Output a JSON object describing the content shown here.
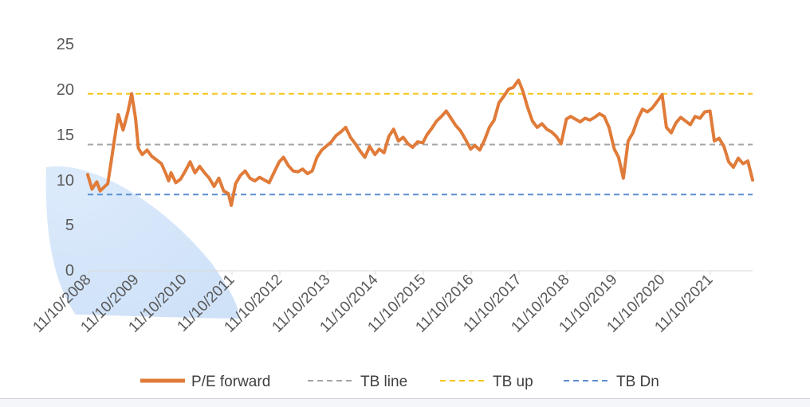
{
  "chart_data": {
    "type": "line",
    "title": "",
    "xlabel": "",
    "ylabel": "",
    "ylim": [
      0,
      25
    ],
    "y_ticks": [
      "0",
      "5",
      "10",
      "15",
      "20",
      "25"
    ],
    "x_ticks": [
      "11/10/2008",
      "11/10/2009",
      "11/10/2010",
      "11/10/2011",
      "11/10/2012",
      "11/10/2013",
      "11/10/2014",
      "11/10/2015",
      "11/10/2016",
      "11/10/2017",
      "11/10/2018",
      "11/10/2019",
      "11/10/2020",
      "11/10/2021"
    ],
    "xlim": [
      2008.86,
      2022.75
    ],
    "grid": false,
    "legend_position": "bottom",
    "series": [
      {
        "name": "P/E forward",
        "style": "solid",
        "color": "#E07B39",
        "x": [
          2008.86,
          2008.95,
          2009.05,
          2009.12,
          2009.2,
          2009.28,
          2009.35,
          2009.42,
          2009.5,
          2009.6,
          2009.7,
          2009.78,
          2009.86,
          2009.92,
          2010.0,
          2010.1,
          2010.2,
          2010.3,
          2010.4,
          2010.5,
          2010.55,
          2010.6,
          2010.7,
          2010.8,
          2010.9,
          2011.0,
          2011.1,
          2011.2,
          2011.3,
          2011.4,
          2011.5,
          2011.6,
          2011.7,
          2011.8,
          2011.86,
          2011.95,
          2012.05,
          2012.15,
          2012.25,
          2012.35,
          2012.45,
          2012.55,
          2012.65,
          2012.75,
          2012.86,
          2012.95,
          2013.05,
          2013.15,
          2013.25,
          2013.35,
          2013.45,
          2013.55,
          2013.65,
          2013.75,
          2013.86,
          2013.95,
          2014.05,
          2014.15,
          2014.25,
          2014.35,
          2014.45,
          2014.55,
          2014.65,
          2014.75,
          2014.86,
          2014.95,
          2015.05,
          2015.15,
          2015.25,
          2015.35,
          2015.45,
          2015.55,
          2015.65,
          2015.75,
          2015.86,
          2015.95,
          2016.05,
          2016.15,
          2016.25,
          2016.35,
          2016.45,
          2016.55,
          2016.65,
          2016.75,
          2016.86,
          2016.95,
          2017.05,
          2017.15,
          2017.25,
          2017.35,
          2017.45,
          2017.55,
          2017.65,
          2017.75,
          2017.86,
          2017.95,
          2018.05,
          2018.15,
          2018.25,
          2018.35,
          2018.45,
          2018.55,
          2018.65,
          2018.75,
          2018.86,
          2018.95,
          2019.05,
          2019.15,
          2019.25,
          2019.35,
          2019.45,
          2019.55,
          2019.65,
          2019.75,
          2019.86,
          2019.95,
          2020.05,
          2020.15,
          2020.25,
          2020.35,
          2020.45,
          2020.55,
          2020.65,
          2020.75,
          2020.86,
          2020.95,
          2021.05,
          2021.15,
          2021.25,
          2021.35,
          2021.45,
          2021.55,
          2021.65,
          2021.75,
          2021.86,
          2021.95,
          2022.05,
          2022.15,
          2022.25,
          2022.35,
          2022.45,
          2022.55,
          2022.65,
          2022.75
        ],
        "values": [
          10.6,
          9.0,
          9.8,
          8.8,
          9.2,
          9.6,
          12.0,
          14.5,
          17.2,
          15.5,
          17.5,
          19.5,
          16.8,
          13.5,
          12.8,
          13.3,
          12.6,
          12.2,
          11.8,
          10.6,
          9.9,
          10.8,
          9.7,
          10.1,
          11.0,
          12.0,
          10.8,
          11.5,
          10.8,
          10.2,
          9.3,
          10.2,
          8.8,
          8.5,
          7.2,
          9.6,
          10.5,
          11.0,
          10.2,
          9.9,
          10.3,
          10.0,
          9.7,
          10.8,
          12.0,
          12.5,
          11.6,
          11.0,
          10.9,
          11.2,
          10.7,
          11.0,
          12.5,
          13.3,
          13.8,
          14.2,
          14.9,
          15.3,
          15.8,
          14.7,
          14.0,
          13.2,
          12.5,
          13.7,
          12.8,
          13.4,
          13.0,
          14.8,
          15.6,
          14.3,
          14.7,
          14.0,
          13.6,
          14.2,
          14.1,
          15.0,
          15.7,
          16.5,
          17.0,
          17.6,
          16.8,
          16.0,
          15.4,
          14.5,
          13.4,
          13.8,
          13.3,
          14.4,
          15.8,
          16.6,
          18.5,
          19.2,
          20.0,
          20.2,
          21.0,
          19.8,
          18.0,
          16.5,
          15.8,
          16.2,
          15.6,
          15.3,
          14.8,
          14.0,
          16.7,
          17.0,
          16.7,
          16.4,
          16.8,
          16.6,
          16.9,
          17.3,
          17.0,
          15.8,
          13.4,
          12.5,
          10.2,
          14.3,
          15.2,
          16.7,
          17.8,
          17.5,
          17.9,
          18.6,
          19.4,
          15.8,
          15.2,
          16.3,
          16.9,
          16.5,
          16.1,
          17.0,
          16.8,
          17.5,
          17.6,
          14.3,
          14.6,
          13.7,
          12.0,
          11.4,
          12.4,
          11.8,
          12.1,
          10.0
        ]
      },
      {
        "name": "TB line",
        "style": "dashed",
        "color": "#A5A5A5",
        "value": 13.9
      },
      {
        "name": "TB up",
        "style": "dashed",
        "color": "#F5C518",
        "value": 19.5
      },
      {
        "name": "TB Dn",
        "style": "dashed",
        "color": "#5B8FD0",
        "value": 8.4
      }
    ]
  }
}
